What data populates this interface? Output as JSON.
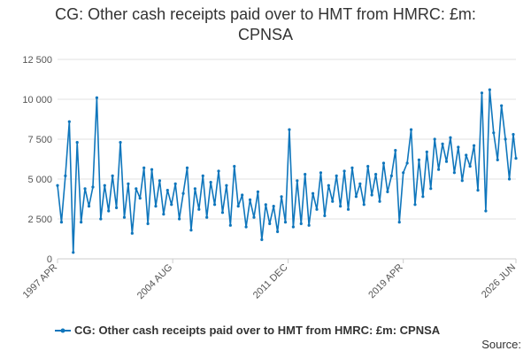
{
  "chart_data": {
    "type": "line",
    "title": [
      "CG: Other cash receipts paid over to HMT from HMRC: £m:",
      "CPNSA"
    ],
    "source": "Source:",
    "grid": true,
    "ylim": [
      0,
      12500
    ],
    "yticks": [
      0,
      {
        "value": 2500,
        "label": "2 500"
      },
      {
        "value": 5000,
        "label": "5 000"
      },
      {
        "value": 7500,
        "label": "7 500"
      },
      {
        "value": 10000,
        "label": "10 000"
      },
      {
        "value": 12500,
        "label": "12 500"
      }
    ],
    "xlim": [
      1997.25,
      2026.42
    ],
    "xticks": [
      {
        "value": 1997.25,
        "label": "1997 APR"
      },
      {
        "value": 2004.58,
        "label": "2004 AUG"
      },
      {
        "value": 2011.92,
        "label": "2011 DEC"
      },
      {
        "value": 2019.25,
        "label": "2019 APR"
      },
      {
        "value": 2026.42,
        "label": "2026 JUN"
      }
    ],
    "x": [
      1997.25,
      1997.5,
      1997.75,
      1998,
      1998.25,
      1998.5,
      1998.75,
      1999,
      1999.25,
      1999.5,
      1999.75,
      2000,
      2000.25,
      2000.5,
      2000.75,
      2001,
      2001.25,
      2001.5,
      2001.75,
      2002,
      2002.25,
      2002.5,
      2002.75,
      2003,
      2003.25,
      2003.5,
      2003.75,
      2004,
      2004.25,
      2004.5,
      2004.75,
      2005,
      2005.25,
      2005.5,
      2005.75,
      2006,
      2006.25,
      2006.5,
      2006.75,
      2007,
      2007.25,
      2007.5,
      2007.75,
      2008,
      2008.25,
      2008.5,
      2008.75,
      2009,
      2009.25,
      2009.5,
      2009.75,
      2010,
      2010.25,
      2010.5,
      2010.75,
      2011,
      2011.25,
      2011.5,
      2011.75,
      2012,
      2012.25,
      2012.5,
      2012.75,
      2013,
      2013.25,
      2013.5,
      2013.75,
      2014,
      2014.25,
      2014.5,
      2014.75,
      2015,
      2015.25,
      2015.5,
      2015.75,
      2016,
      2016.25,
      2016.5,
      2016.75,
      2017,
      2017.25,
      2017.5,
      2017.75,
      2018,
      2018.25,
      2018.5,
      2018.75,
      2019,
      2019.25,
      2019.5,
      2019.75,
      2020,
      2020.25,
      2020.5,
      2020.75,
      2021,
      2021.25,
      2021.5,
      2021.75,
      2022,
      2022.25,
      2022.5,
      2022.75,
      2023,
      2023.25,
      2023.5,
      2023.75,
      2024,
      2024.25,
      2024.5,
      2024.75,
      2025,
      2025.25,
      2025.5,
      2025.75,
      2026,
      2026.25,
      2026.42
    ],
    "series": [
      {
        "name": "CG: Other cash receipts paid over to HMT from HMRC: £m: CPNSA",
        "color": "#0f76bc",
        "values": [
          4600,
          2300,
          5200,
          8600,
          400,
          7300,
          2300,
          4400,
          3300,
          4500,
          10100,
          2500,
          4600,
          3000,
          5200,
          3200,
          7300,
          2600,
          4700,
          1600,
          4400,
          3800,
          5700,
          2200,
          5600,
          3300,
          4900,
          2800,
          4300,
          3400,
          4700,
          2500,
          4100,
          5700,
          1800,
          4400,
          3100,
          5200,
          2600,
          4800,
          3400,
          5500,
          2900,
          4600,
          2100,
          5800,
          3300,
          4000,
          2000,
          3700,
          2600,
          4200,
          1200,
          3400,
          2200,
          3300,
          1700,
          3900,
          2300,
          8100,
          2000,
          4900,
          2200,
          5300,
          2100,
          4100,
          3100,
          5400,
          2700,
          4600,
          3600,
          5200,
          3300,
          5500,
          3100,
          5700,
          3900,
          4700,
          3400,
          5800,
          4000,
          5300,
          3600,
          6000,
          4200,
          5200,
          6800,
          2300,
          5400,
          6000,
          8100,
          3400,
          6200,
          3900,
          6700,
          4400,
          7500,
          5600,
          7200,
          6100,
          7600,
          5400,
          7000,
          4900,
          6500,
          5800,
          7100,
          4300,
          10400,
          3000,
          10600,
          7900,
          6200,
          9600,
          7500,
          5000,
          7800,
          6300
        ]
      }
    ]
  }
}
